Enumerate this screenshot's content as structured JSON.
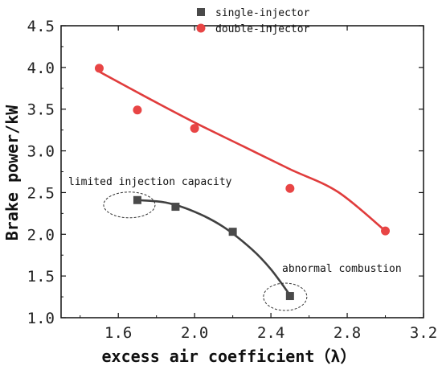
{
  "chart_data": {
    "type": "scatter",
    "xlabel": "excess air coefficient（λ）",
    "ylabel": "Brake power/kW",
    "xlim": [
      1.3,
      3.2
    ],
    "ylim": [
      1.0,
      4.5
    ],
    "x_ticks": [
      "1.6",
      "2.0",
      "2.4",
      "2.8",
      "3.2"
    ],
    "y_ticks": [
      "1.0",
      "1.5",
      "2.0",
      "2.5",
      "3.0",
      "3.5",
      "4.0",
      "4.5"
    ],
    "grid": false,
    "legend_position": "top-center",
    "series": [
      {
        "name": "single-injector",
        "marker": "square",
        "color": "#4a4a4a",
        "line_color": "#404040",
        "x": [
          1.7,
          1.9,
          2.2,
          2.5
        ],
        "y": [
          2.41,
          2.33,
          2.03,
          1.26
        ],
        "fit_curve": [
          [
            1.7,
            2.41
          ],
          [
            1.85,
            2.38
          ],
          [
            2.0,
            2.27
          ],
          [
            2.15,
            2.09
          ],
          [
            2.3,
            1.82
          ],
          [
            2.4,
            1.58
          ],
          [
            2.5,
            1.27
          ]
        ]
      },
      {
        "name": "double-injector",
        "marker": "circle",
        "color": "#e84545",
        "line_color": "#e03c3c",
        "x": [
          1.5,
          1.7,
          2.0,
          2.5,
          3.0
        ],
        "y": [
          3.99,
          3.49,
          3.27,
          2.55,
          2.04
        ],
        "fit_curve": [
          [
            1.5,
            3.95
          ],
          [
            1.75,
            3.64
          ],
          [
            2.0,
            3.34
          ],
          [
            2.25,
            3.06
          ],
          [
            2.5,
            2.78
          ],
          [
            2.75,
            2.51
          ],
          [
            3.0,
            2.04
          ]
        ]
      }
    ],
    "annotations": [
      {
        "text": "limited injection capacity",
        "x": 1.7,
        "y": 2.41
      },
      {
        "text": "abnormal combustion",
        "x": 2.5,
        "y": 1.26
      }
    ]
  }
}
